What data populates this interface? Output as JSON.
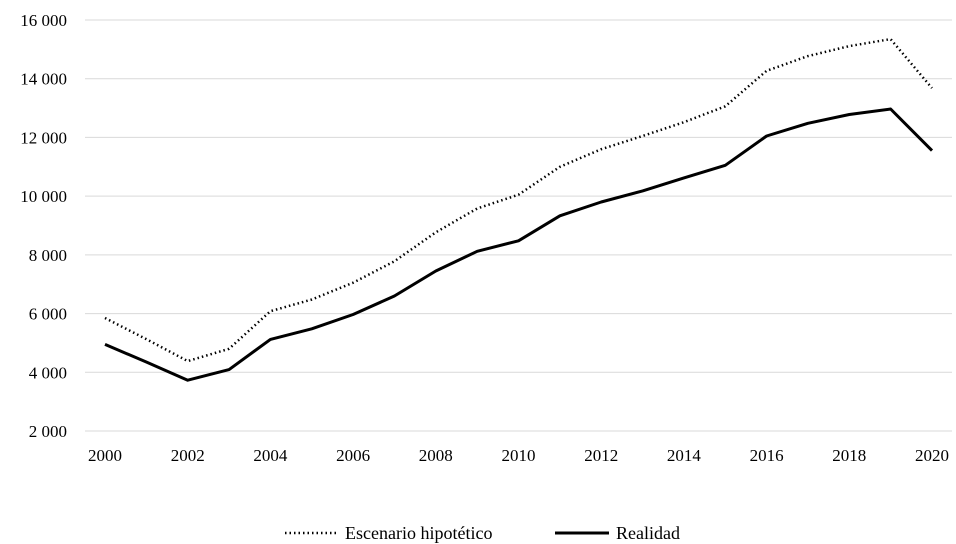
{
  "chart_data": {
    "type": "line",
    "title": "",
    "xlabel": "",
    "ylabel": "",
    "x": [
      2000,
      2001,
      2002,
      2003,
      2004,
      2005,
      2006,
      2007,
      2008,
      2009,
      2010,
      2011,
      2012,
      2013,
      2014,
      2015,
      2016,
      2017,
      2018,
      2019,
      2020
    ],
    "x_tick_labels": [
      "2000",
      "2002",
      "2004",
      "2006",
      "2008",
      "2010",
      "2012",
      "2014",
      "2016",
      "2018",
      "2020"
    ],
    "ylim": [
      2000,
      16000
    ],
    "y_ticks": [
      2000,
      4000,
      6000,
      8000,
      10000,
      12000,
      14000,
      16000
    ],
    "y_tick_labels": [
      "2 000",
      "4 000",
      "6 000",
      "8 000",
      "10 000",
      "12 000",
      "14 000",
      "16 000"
    ],
    "grid": "horizontal",
    "legend_position": "bottom-center",
    "series": [
      {
        "name": "Escenario hipotético",
        "style": "dotted",
        "color": "#000000",
        "values": [
          5850,
          5130,
          4380,
          4800,
          6080,
          6480,
          7050,
          7780,
          8770,
          9580,
          10050,
          11000,
          11600,
          12050,
          12520,
          13060,
          14270,
          14770,
          15110,
          15350,
          13680
        ]
      },
      {
        "name": "Realidad",
        "style": "solid",
        "color": "#000000",
        "values": [
          4950,
          4350,
          3730,
          4090,
          5120,
          5480,
          5970,
          6600,
          7450,
          8120,
          8480,
          9330,
          9800,
          10180,
          10620,
          11050,
          12050,
          12480,
          12780,
          12970,
          11550
        ]
      }
    ]
  }
}
